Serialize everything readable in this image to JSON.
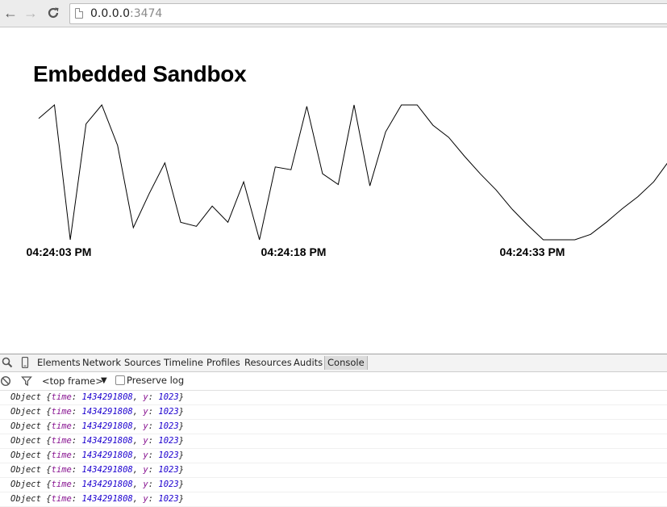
{
  "browser": {
    "url_host": "0.0.0.0",
    "url_port": ":3474"
  },
  "page": {
    "title": "Embedded Sandbox"
  },
  "chart_data": {
    "type": "line",
    "title": "",
    "xlabel": "",
    "ylabel": "",
    "x_tick_labels": [
      "04:24:03 PM",
      "04:24:18 PM",
      "04:24:33 PM"
    ],
    "y_relative": [
      0.9,
      1.0,
      0.0,
      0.86,
      1.0,
      0.7,
      0.09,
      0.34,
      0.57,
      0.13,
      0.1,
      0.25,
      0.13,
      0.43,
      0.0,
      0.54,
      0.52,
      0.99,
      0.49,
      0.41,
      1.0,
      0.4,
      0.8,
      1.0,
      1.0,
      0.85,
      0.76,
      0.62,
      0.49,
      0.37,
      0.23,
      0.11,
      0.0,
      0.0,
      0.0,
      0.04,
      0.13,
      0.23,
      0.32,
      0.43,
      0.59,
      0.7
    ]
  },
  "devtools": {
    "tabs": [
      "Elements",
      "Network",
      "Sources",
      "Timeline",
      "Profiles",
      "Resources",
      "Audits",
      "Console"
    ],
    "active_tab": "Console",
    "frame_select": "<top frame>",
    "preserve_log_label": "Preserve log",
    "console_lines": [
      {
        "prefix": "Object {",
        "k1": "time",
        "v1": "1434291808",
        "k2": "y",
        "v2": "1023",
        "suffix": "}"
      },
      {
        "prefix": "Object {",
        "k1": "time",
        "v1": "1434291808",
        "k2": "y",
        "v2": "1023",
        "suffix": "}"
      },
      {
        "prefix": "Object {",
        "k1": "time",
        "v1": "1434291808",
        "k2": "y",
        "v2": "1023",
        "suffix": "}"
      },
      {
        "prefix": "Object {",
        "k1": "time",
        "v1": "1434291808",
        "k2": "y",
        "v2": "1023",
        "suffix": "}"
      },
      {
        "prefix": "Object {",
        "k1": "time",
        "v1": "1434291808",
        "k2": "y",
        "v2": "1023",
        "suffix": "}"
      },
      {
        "prefix": "Object {",
        "k1": "time",
        "v1": "1434291808",
        "k2": "y",
        "v2": "1023",
        "suffix": "}"
      },
      {
        "prefix": "Object {",
        "k1": "time",
        "v1": "1434291808",
        "k2": "y",
        "v2": "1023",
        "suffix": "}"
      },
      {
        "prefix": "Object {",
        "k1": "time",
        "v1": "1434291808",
        "k2": "y",
        "v2": "1023",
        "suffix": "}"
      }
    ]
  }
}
